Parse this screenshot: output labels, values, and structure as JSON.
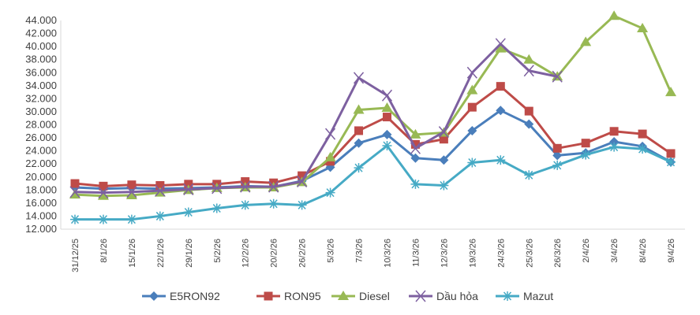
{
  "chart_data": {
    "type": "line",
    "title": "",
    "xlabel": "",
    "ylabel": "",
    "ylim": [
      12000,
      44000
    ],
    "ytick_step": 2000,
    "yticks": [
      "12.000",
      "14.000",
      "16.000",
      "18.000",
      "20.000",
      "22.000",
      "24.000",
      "26.000",
      "28.000",
      "30.000",
      "32.000",
      "34.000",
      "36.000",
      "38.000",
      "40.000",
      "42.000",
      "44.000"
    ],
    "grid": false,
    "legend_position": "bottom",
    "categories": [
      "31/12/25",
      "8/1/26",
      "15/1/26",
      "22/1/26",
      "29/1/26",
      "5/2/26",
      "12/2/26",
      "20/2/26",
      "26/2/26",
      "5/3/26",
      "7/3/26",
      "10/3/26",
      "11/3/26",
      "12/3/26",
      "19/3/26",
      "24/3/26",
      "25/3/26",
      "26/3/26",
      "2/4/26",
      "3/4/26",
      "8/4/26",
      "9/4/26"
    ],
    "series": [
      {
        "name": "E5RON92",
        "color": "#4a7ebb",
        "marker": "diamond",
        "values": [
          18400,
          18200,
          18300,
          18200,
          18300,
          18400,
          18600,
          18500,
          19400,
          21500,
          25200,
          26500,
          22900,
          22600,
          27100,
          30200,
          28100,
          23300,
          23700,
          25400,
          24700,
          22300
        ]
      },
      {
        "name": "RON95",
        "color": "#be4b48",
        "marker": "square",
        "values": [
          19000,
          18600,
          18800,
          18700,
          18900,
          18900,
          19300,
          19100,
          20200,
          22400,
          27100,
          29200,
          25000,
          25800,
          30700,
          33900,
          30100,
          24400,
          25200,
          27000,
          26600,
          23600
        ]
      },
      {
        "name": "Diesel",
        "color": "#98b954",
        "marker": "triangle",
        "values": [
          17300,
          17100,
          17200,
          17600,
          18000,
          18300,
          18400,
          18400,
          19200,
          23000,
          30300,
          30600,
          26500,
          26800,
          33300,
          39700,
          38000,
          35400,
          40700,
          44700,
          42800,
          33000
        ]
      },
      {
        "name": "Dầu hỏa",
        "color": "#7d60a0",
        "marker": "x",
        "values": [
          17700,
          17600,
          17700,
          17900,
          18100,
          18300,
          18500,
          18500,
          19300,
          26600,
          35200,
          32500,
          24400,
          26900,
          36000,
          40400,
          36300,
          35400,
          null,
          null,
          null,
          null
        ]
      },
      {
        "name": "Mazut",
        "color": "#46aac5",
        "marker": "star",
        "values": [
          13500,
          13500,
          13500,
          14000,
          14600,
          15200,
          15700,
          15900,
          15700,
          17600,
          21400,
          24800,
          18900,
          18700,
          22200,
          22600,
          20300,
          21800,
          23400,
          24600,
          24300,
          22300
        ]
      }
    ]
  }
}
